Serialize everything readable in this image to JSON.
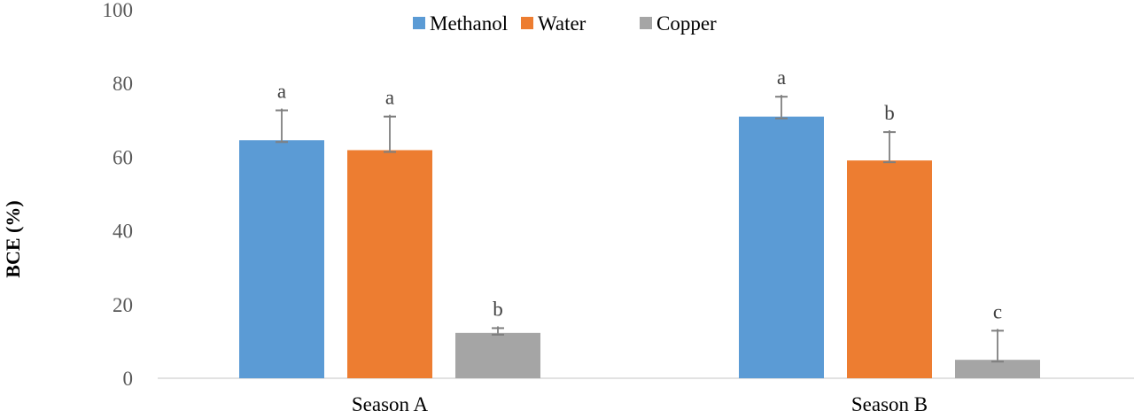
{
  "chart_data": {
    "type": "bar",
    "title": "",
    "xlabel": "",
    "ylabel": "BCE (%)",
    "ylim": [
      0,
      100
    ],
    "yticks": [
      "0",
      "20",
      "40",
      "60",
      "80",
      "100"
    ],
    "grid": false,
    "legend_position": "top",
    "categories": [
      "Season A",
      "Season B"
    ],
    "series": [
      {
        "name": "Methanol",
        "color": "#5B9BD5",
        "values": [
          64.6,
          71.0
        ],
        "errors": [
          8.1,
          5.4
        ],
        "letters": [
          "a",
          "a"
        ]
      },
      {
        "name": "Water",
        "color": "#ED7D31",
        "values": [
          61.9,
          59.1
        ],
        "errors": [
          9.1,
          7.7
        ],
        "letters": [
          "a",
          "b"
        ]
      },
      {
        "name": "Copper",
        "color": "#A5A5A5",
        "values": [
          12.3,
          5.0
        ],
        "errors": [
          1.3,
          7.9
        ],
        "letters": [
          "b",
          "c"
        ]
      }
    ]
  }
}
